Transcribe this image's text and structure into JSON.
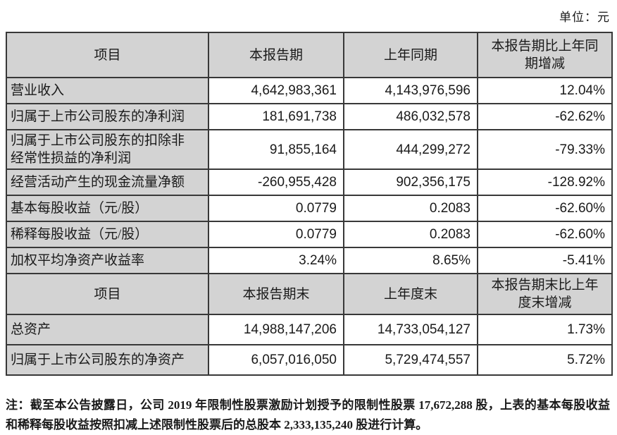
{
  "unit_label": "单位：元",
  "section1": {
    "col_item": "项目",
    "col_current": "本报告期",
    "col_prior": "上年同期",
    "col_change": "本报告期比上年同\n期增减",
    "rows": [
      {
        "item": "营业收入",
        "current": "4,642,983,361",
        "prior": "4,143,976,596",
        "change": "12.04%"
      },
      {
        "item": "归属于上市公司股东的净利润",
        "current": "181,691,738",
        "prior": "486,032,578",
        "change": "-62.62%"
      },
      {
        "item": "归属于上市公司股东的扣除非\n经常性损益的净利润",
        "current": "91,855,164",
        "prior": "444,299,272",
        "change": "-79.33%"
      },
      {
        "item": "经营活动产生的现金流量净额",
        "current": "-260,955,428",
        "prior": "902,356,175",
        "change": "-128.92%"
      },
      {
        "item": "基本每股收益（元/股）",
        "current": "0.0779",
        "prior": "0.2083",
        "change": "-62.60%"
      },
      {
        "item": "稀释每股收益（元/股）",
        "current": "0.0779",
        "prior": "0.2083",
        "change": "-62.60%"
      },
      {
        "item": "加权平均净资产收益率",
        "current": "3.24%",
        "prior": "8.65%",
        "change": "-5.41%"
      }
    ]
  },
  "section2": {
    "col_item": "项目",
    "col_current": "本报告期末",
    "col_prior": "上年度末",
    "col_change": "本报告期末比上年\n度末增减",
    "rows": [
      {
        "item": "总资产",
        "current": "14,988,147,206",
        "prior": "14,733,054,127",
        "change": "1.73%"
      },
      {
        "item": "归属于上市公司股东的净资产",
        "current": "6,057,016,050",
        "prior": "5,729,474,557",
        "change": "5.72%"
      }
    ]
  },
  "note": {
    "text": "注：截至本公告披露日，公司 2019 年限制性股票激励计划授予的限制性股票 17,672,288 股，上表的基本每股收益和稀释每股收益按照扣减上述限制性股票后的总股本 2,333,135,240 股进行计算。"
  },
  "colors": {
    "header_bg": "#d3d3d3",
    "border": "#383838",
    "text": "#1a1a1a",
    "page_bg": "#ffffff"
  }
}
